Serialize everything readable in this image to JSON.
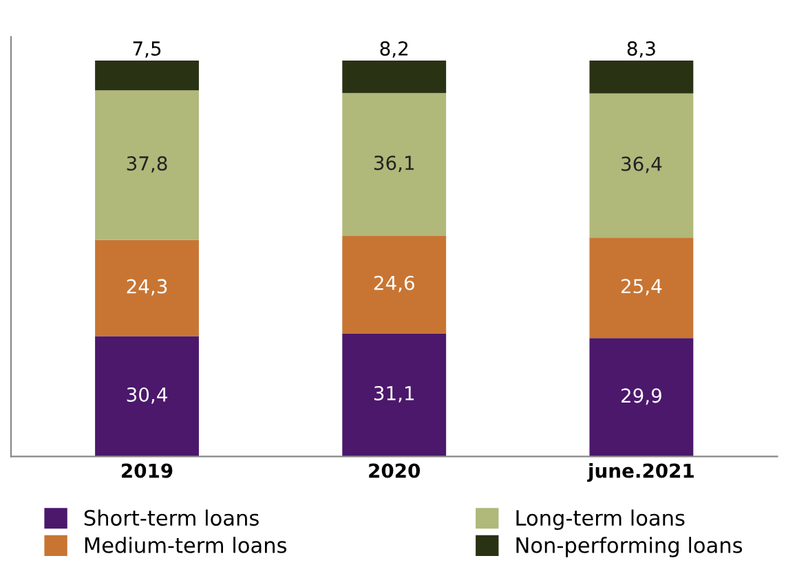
{
  "chart_data": {
    "type": "bar",
    "stacked": true,
    "categories": [
      "2019",
      "2020",
      "june.2021"
    ],
    "series": [
      {
        "name": "Short-term loans",
        "color": "#4b186b",
        "values": [
          30.4,
          31.1,
          29.9
        ],
        "value_labels": [
          "30,4",
          "31,1",
          "29,9"
        ]
      },
      {
        "name": "Medium-term loans",
        "color": "#c87533",
        "values": [
          24.3,
          24.6,
          25.4
        ],
        "value_labels": [
          "24,3",
          "24,6",
          "25,4"
        ]
      },
      {
        "name": "Long-term loans",
        "color": "#b0b87a",
        "values": [
          37.8,
          36.1,
          36.4
        ],
        "value_labels": [
          "37,8",
          "36,1",
          "36,4"
        ]
      },
      {
        "name": "Non-performing loans",
        "color": "#2a3214",
        "values": [
          7.5,
          8.2,
          8.3
        ],
        "value_labels": [
          "7,5",
          "8,2",
          "8,3"
        ]
      }
    ],
    "legend": "bottom",
    "tick_labels": "x",
    "grid": false
  }
}
